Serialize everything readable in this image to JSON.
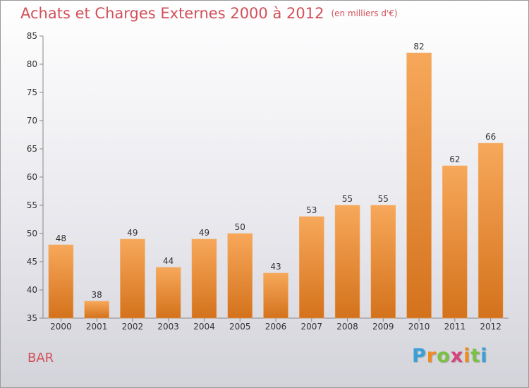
{
  "header": {
    "title": "Achats et Charges Externes 2000 à 2012",
    "unit": "(en milliers d'€)"
  },
  "footer": {
    "place": "BAR",
    "brand": "Proxiti"
  },
  "colors": {
    "title": "#d2505a",
    "bar_top": "#f7a85a",
    "bar_bottom": "#d4721c"
  },
  "chart_data": {
    "type": "bar",
    "categories": [
      "2000",
      "2001",
      "2002",
      "2003",
      "2004",
      "2005",
      "2006",
      "2007",
      "2008",
      "2009",
      "2010",
      "2011",
      "2012"
    ],
    "values": [
      48,
      38,
      49,
      44,
      49,
      50,
      43,
      53,
      55,
      55,
      82,
      62,
      66
    ],
    "title": "Achats et Charges Externes 2000 à 2012",
    "subtitle": "(en milliers d'€)",
    "xlabel": "",
    "ylabel": "",
    "ylim": [
      35,
      85
    ],
    "yticks": [
      35,
      40,
      45,
      50,
      55,
      60,
      65,
      70,
      75,
      80,
      85
    ],
    "data_labels": true,
    "grid": false,
    "legend": "none"
  }
}
